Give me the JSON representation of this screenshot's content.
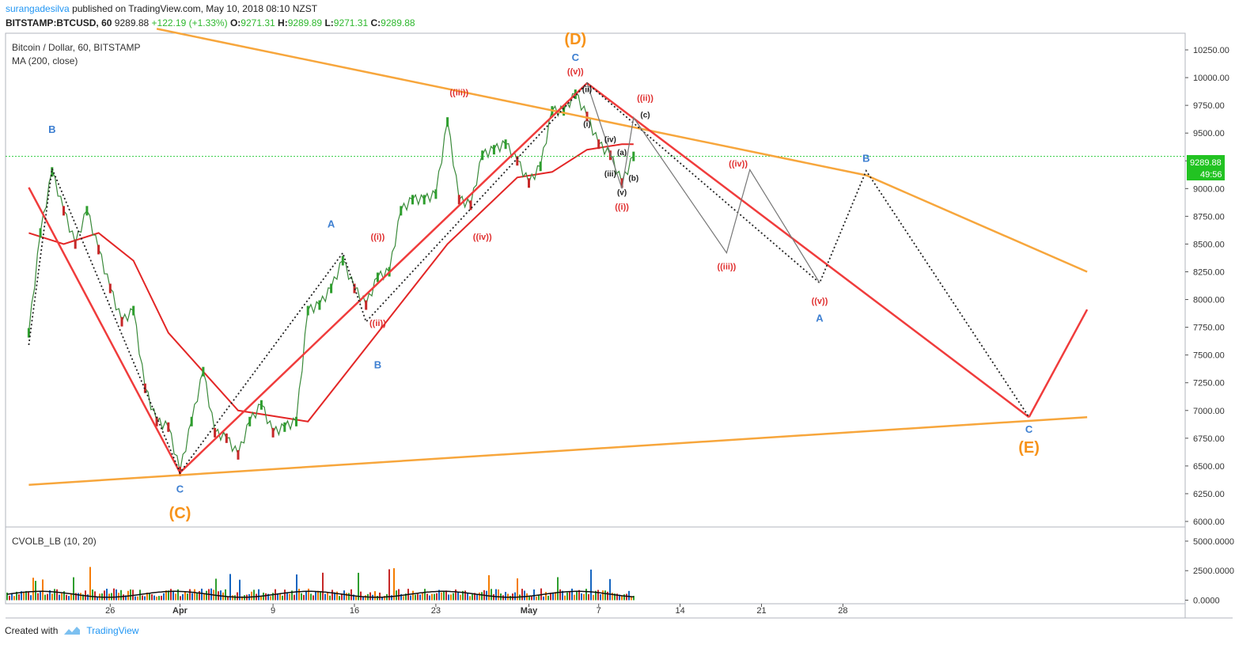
{
  "header": {
    "author": "surangadesilva",
    "published_text": "published on TradingView.com, May 10, 2018 08:10 NZST",
    "symbol": "BITSTAMP:BTCUSD, 60",
    "last": "9289.88",
    "change": "+122.19 (+1.33%)",
    "o_label": "O:",
    "o_val": "9271.31",
    "h_label": "H:",
    "h_val": "9289.89",
    "l_label": "L:",
    "l_val": "9271.31",
    "c_label": "C:",
    "c_val": "9289.88"
  },
  "main_pane": {
    "title": "Bitcoin / Dollar, 60, BITSTAMP",
    "indicator": "MA (200, close)",
    "price_tag": "9289.88",
    "countdown": "49:56"
  },
  "volume_pane": {
    "title": "CVOLB_LB (10, 20)",
    "ticks": [
      "5000.0000",
      "2500.0000",
      "0.0000"
    ]
  },
  "footer": {
    "created_with": "Created with",
    "brand": "TradingView"
  },
  "chart_data": {
    "type": "line",
    "title": "Bitcoin / Dollar, 60, BITSTAMP",
    "y_ticks": [
      "10250.00",
      "10000.00",
      "9750.00",
      "9500.00",
      "9250.00",
      "9000.00",
      "8750.00",
      "8500.00",
      "8250.00",
      "8000.00",
      "7750.00",
      "7500.00",
      "7250.00",
      "7000.00",
      "6750.00",
      "6500.00",
      "6250.00",
      "6000.00"
    ],
    "x_ticks": [
      "26",
      "Apr",
      "9",
      "16",
      "23",
      "May",
      "7",
      "14",
      "21",
      "28"
    ],
    "ylim": [
      5950,
      10400
    ],
    "price_path": [
      {
        "t": "2018-03-19",
        "v": 7700
      },
      {
        "t": "2018-03-20",
        "v": 8600
      },
      {
        "t": "2018-03-21",
        "v": 9150
      },
      {
        "t": "2018-03-22",
        "v": 8800
      },
      {
        "t": "2018-03-23",
        "v": 8500
      },
      {
        "t": "2018-03-24",
        "v": 8800
      },
      {
        "t": "2018-03-25",
        "v": 8450
      },
      {
        "t": "2018-03-26",
        "v": 8100
      },
      {
        "t": "2018-03-27",
        "v": 7800
      },
      {
        "t": "2018-03-28",
        "v": 7900
      },
      {
        "t": "2018-03-29",
        "v": 7200
      },
      {
        "t": "2018-03-30",
        "v": 6900
      },
      {
        "t": "2018-03-31",
        "v": 6850
      },
      {
        "t": "2018-04-01",
        "v": 6450
      },
      {
        "t": "2018-04-02",
        "v": 6900
      },
      {
        "t": "2018-04-03",
        "v": 7350
      },
      {
        "t": "2018-04-04",
        "v": 6800
      },
      {
        "t": "2018-04-05",
        "v": 6750
      },
      {
        "t": "2018-04-06",
        "v": 6600
      },
      {
        "t": "2018-04-07",
        "v": 6900
      },
      {
        "t": "2018-04-08",
        "v": 7050
      },
      {
        "t": "2018-04-09",
        "v": 6800
      },
      {
        "t": "2018-04-10",
        "v": 6850
      },
      {
        "t": "2018-04-11",
        "v": 6900
      },
      {
        "t": "2018-04-12",
        "v": 7900
      },
      {
        "t": "2018-04-13",
        "v": 7950
      },
      {
        "t": "2018-04-14",
        "v": 8100
      },
      {
        "t": "2018-04-15",
        "v": 8350
      },
      {
        "t": "2018-04-16",
        "v": 8100
      },
      {
        "t": "2018-04-17",
        "v": 7950
      },
      {
        "t": "2018-04-18",
        "v": 8200
      },
      {
        "t": "2018-04-19",
        "v": 8250
      },
      {
        "t": "2018-04-20",
        "v": 8800
      },
      {
        "t": "2018-04-21",
        "v": 8900
      },
      {
        "t": "2018-04-22",
        "v": 8900
      },
      {
        "t": "2018-04-23",
        "v": 8950
      },
      {
        "t": "2018-04-24",
        "v": 9600
      },
      {
        "t": "2018-04-25",
        "v": 8900
      },
      {
        "t": "2018-04-26",
        "v": 8850
      },
      {
        "t": "2018-04-27",
        "v": 9300
      },
      {
        "t": "2018-04-28",
        "v": 9350
      },
      {
        "t": "2018-04-29",
        "v": 9400
      },
      {
        "t": "2018-04-30",
        "v": 9250
      },
      {
        "t": "2018-05-01",
        "v": 9050
      },
      {
        "t": "2018-05-02",
        "v": 9200
      },
      {
        "t": "2018-05-03",
        "v": 9700
      },
      {
        "t": "2018-05-04",
        "v": 9700
      },
      {
        "t": "2018-05-05",
        "v": 9850
      },
      {
        "t": "2018-05-06",
        "v": 9650
      },
      {
        "t": "2018-05-07",
        "v": 9400
      },
      {
        "t": "2018-05-08",
        "v": 9300
      },
      {
        "t": "2018-05-09",
        "v": 9050
      },
      {
        "t": "2018-05-10",
        "v": 9289.88
      }
    ],
    "ma200_path": [
      {
        "t": "2018-03-19",
        "v": 8600
      },
      {
        "t": "2018-03-22",
        "v": 8500
      },
      {
        "t": "2018-03-25",
        "v": 8600
      },
      {
        "t": "2018-03-28",
        "v": 8350
      },
      {
        "t": "2018-03-31",
        "v": 7700
      },
      {
        "t": "2018-04-03",
        "v": 7350
      },
      {
        "t": "2018-04-06",
        "v": 7000
      },
      {
        "t": "2018-04-09",
        "v": 6950
      },
      {
        "t": "2018-04-12",
        "v": 6900
      },
      {
        "t": "2018-04-15",
        "v": 7300
      },
      {
        "t": "2018-04-18",
        "v": 7700
      },
      {
        "t": "2018-04-21",
        "v": 8100
      },
      {
        "t": "2018-04-24",
        "v": 8500
      },
      {
        "t": "2018-04-27",
        "v": 8800
      },
      {
        "t": "2018-04-30",
        "v": 9100
      },
      {
        "t": "2018-05-03",
        "v": 9150
      },
      {
        "t": "2018-05-06",
        "v": 9350
      },
      {
        "t": "2018-05-09",
        "v": 9400
      },
      {
        "t": "2018-05-10",
        "v": 9400
      }
    ],
    "current_price": 9289.88,
    "drawings": [
      {
        "name": "upper-orange-trendline",
        "color": "#f7a63c",
        "points": [
          {
            "t": "2018-03-30",
            "v": 10440
          },
          {
            "t": "2018-05-30",
            "v": 9120
          },
          {
            "t": "2018-06-18",
            "v": 8250
          }
        ]
      },
      {
        "name": "lower-orange-trendline",
        "color": "#f7a63c",
        "points": [
          {
            "t": "2018-03-19",
            "v": 6330
          },
          {
            "t": "2018-06-18",
            "v": 6940
          }
        ]
      },
      {
        "name": "red-wave-line-1",
        "color": "#f03c3c",
        "points": [
          {
            "t": "2018-03-19",
            "v": 9010
          },
          {
            "t": "2018-04-01",
            "v": 6440
          }
        ]
      },
      {
        "name": "red-wave-line-2",
        "color": "#f03c3c",
        "points": [
          {
            "t": "2018-04-01",
            "v": 6440
          },
          {
            "t": "2018-05-06",
            "v": 9950
          }
        ]
      },
      {
        "name": "red-wave-line-3",
        "color": "#f03c3c",
        "points": [
          {
            "t": "2018-05-06",
            "v": 9950
          },
          {
            "t": "2018-06-13",
            "v": 6940
          }
        ]
      },
      {
        "name": "red-wave-line-4",
        "color": "#f03c3c",
        "points": [
          {
            "t": "2018-06-13",
            "v": 6940
          },
          {
            "t": "2018-06-18",
            "v": 7910
          }
        ]
      },
      {
        "name": "dotted-wave-path",
        "color": "#222222",
        "points": [
          {
            "t": "2018-03-19",
            "v": 7590
          },
          {
            "t": "2018-03-21",
            "v": 9180
          },
          {
            "t": "2018-04-01",
            "v": 6440
          },
          {
            "t": "2018-04-15",
            "v": 8420
          },
          {
            "t": "2018-04-17",
            "v": 7800
          },
          {
            "t": "2018-05-06",
            "v": 9950
          },
          {
            "t": "2018-05-26",
            "v": 8150
          },
          {
            "t": "2018-05-30",
            "v": 9160
          },
          {
            "t": "2018-06-13",
            "v": 6940
          }
        ]
      },
      {
        "name": "grey-projection-path",
        "color": "#777777",
        "points": [
          {
            "t": "2018-05-06",
            "v": 9950
          },
          {
            "t": "2018-05-09",
            "v": 9000
          },
          {
            "t": "2018-05-10",
            "v": 9640
          },
          {
            "t": "2018-05-18",
            "v": 8420
          },
          {
            "t": "2018-05-20",
            "v": 9170
          },
          {
            "t": "2018-05-26",
            "v": 8150
          }
        ]
      }
    ],
    "labels": [
      {
        "text": "B",
        "t": "2018-03-21",
        "v": 9500,
        "color": "#3d7fd1",
        "size": 13
      },
      {
        "text": "C",
        "t": "2018-04-01",
        "v": 6260,
        "color": "#3d7fd1",
        "size": 13
      },
      {
        "text": "(C)",
        "t": "2018-04-01",
        "v": 6030,
        "color": "#f7931a",
        "size": 20
      },
      {
        "text": "A",
        "t": "2018-04-14",
        "v": 8650,
        "color": "#3d7fd1",
        "size": 13
      },
      {
        "text": "B",
        "t": "2018-04-18",
        "v": 7380,
        "color": "#3d7fd1",
        "size": 13
      },
      {
        "text": "((i))",
        "t": "2018-04-18",
        "v": 8540,
        "color": "#e03030",
        "size": 11
      },
      {
        "text": "((ii))",
        "t": "2018-04-18",
        "v": 7760,
        "color": "#e03030",
        "size": 11
      },
      {
        "text": "((iii))",
        "t": "2018-04-25",
        "v": 9840,
        "color": "#e03030",
        "size": 11
      },
      {
        "text": "((iv))",
        "t": "2018-04-27",
        "v": 8540,
        "color": "#e03030",
        "size": 11
      },
      {
        "text": "(D)",
        "t": "2018-05-05",
        "v": 10300,
        "color": "#f7931a",
        "size": 20
      },
      {
        "text": "C",
        "t": "2018-05-05",
        "v": 10150,
        "color": "#3d7fd1",
        "size": 13
      },
      {
        "text": "((v))",
        "t": "2018-05-05",
        "v": 10030,
        "color": "#e03030",
        "size": 11
      },
      {
        "text": "(ii)",
        "t": "2018-05-06",
        "v": 9870,
        "color": "#222222",
        "size": 10
      },
      {
        "text": "(i)",
        "t": "2018-05-06",
        "v": 9560,
        "color": "#222222",
        "size": 10
      },
      {
        "text": "(iv)",
        "t": "2018-05-08",
        "v": 9420,
        "color": "#222222",
        "size": 10
      },
      {
        "text": "(a)",
        "t": "2018-05-09",
        "v": 9300,
        "color": "#222222",
        "size": 10
      },
      {
        "text": "(iii)",
        "t": "2018-05-08",
        "v": 9110,
        "color": "#222222",
        "size": 10
      },
      {
        "text": "(b)",
        "t": "2018-05-10",
        "v": 9070,
        "color": "#222222",
        "size": 10
      },
      {
        "text": "(v)",
        "t": "2018-05-09",
        "v": 8940,
        "color": "#222222",
        "size": 10
      },
      {
        "text": "((i))",
        "t": "2018-05-09",
        "v": 8810,
        "color": "#e03030",
        "size": 11
      },
      {
        "text": "((ii))",
        "t": "2018-05-11",
        "v": 9790,
        "color": "#e03030",
        "size": 11
      },
      {
        "text": "(c)",
        "t": "2018-05-11",
        "v": 9640,
        "color": "#222222",
        "size": 10
      },
      {
        "text": "((iv))",
        "t": "2018-05-19",
        "v": 9200,
        "color": "#e03030",
        "size": 11
      },
      {
        "text": "((iii))",
        "t": "2018-05-18",
        "v": 8270,
        "color": "#e03030",
        "size": 11
      },
      {
        "text": "((v))",
        "t": "2018-05-26",
        "v": 7960,
        "color": "#e03030",
        "size": 11
      },
      {
        "text": "A",
        "t": "2018-05-26",
        "v": 7800,
        "color": "#3d7fd1",
        "size": 13
      },
      {
        "text": "B",
        "t": "2018-05-30",
        "v": 9240,
        "color": "#3d7fd1",
        "size": 13
      },
      {
        "text": "C",
        "t": "2018-06-13",
        "v": 6800,
        "color": "#3d7fd1",
        "size": 13
      },
      {
        "text": "(E)",
        "t": "2018-06-13",
        "v": 6620,
        "color": "#f7931a",
        "size": 20
      }
    ],
    "volume": {
      "ylim": [
        -300,
        6200
      ],
      "series_hint": "CVOLB_LB (10, 20)"
    }
  }
}
